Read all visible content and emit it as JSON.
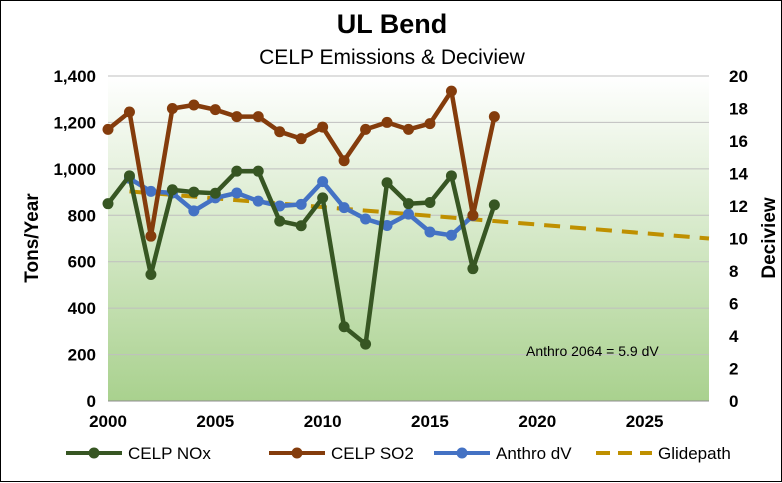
{
  "chart_data": {
    "type": "line",
    "title": "UL Bend",
    "subtitle": "CELP Emissions & Deciview",
    "ylabel": "Tons/Year",
    "y2label": "Deciview",
    "xlim": [
      2000,
      2028
    ],
    "ylim": [
      0,
      1400
    ],
    "y2lim": [
      0,
      20
    ],
    "xticks": [
      2000,
      2005,
      2010,
      2015,
      2020,
      2025
    ],
    "xtick_labels": [
      "2000",
      "2005",
      "2010",
      "2015",
      "2020",
      "2025"
    ],
    "yticks": [
      0,
      200,
      400,
      600,
      800,
      1000,
      1200,
      1400
    ],
    "ytick_labels": [
      "0",
      "200",
      "400",
      "600",
      "800",
      "1,000",
      "1,200",
      "1,400"
    ],
    "y2ticks": [
      0,
      2,
      4,
      6,
      8,
      10,
      12,
      14,
      16,
      18,
      20
    ],
    "y2tick_labels": [
      "0",
      "2",
      "4",
      "6",
      "8",
      "10",
      "12",
      "14",
      "16",
      "18",
      "20"
    ],
    "grid": "horizontal",
    "legend_position": "bottom",
    "background": "gradient-green",
    "series": [
      {
        "name": "CELP NOx",
        "axis": "left",
        "color": "#375623",
        "style": "line-marker",
        "x": [
          2000,
          2001,
          2002,
          2003,
          2004,
          2005,
          2006,
          2007,
          2008,
          2009,
          2010,
          2011,
          2012,
          2013,
          2014,
          2015,
          2016,
          2017,
          2018
        ],
        "values": [
          850,
          970,
          545,
          910,
          900,
          895,
          990,
          990,
          775,
          755,
          875,
          320,
          245,
          940,
          850,
          855,
          970,
          570,
          845
        ]
      },
      {
        "name": "CELP SO2",
        "axis": "left",
        "color": "#843C0C",
        "style": "line-marker",
        "x": [
          2000,
          2001,
          2002,
          2003,
          2004,
          2005,
          2006,
          2007,
          2008,
          2009,
          2010,
          2011,
          2012,
          2013,
          2014,
          2015,
          2016,
          2017,
          2018
        ],
        "values": [
          1170,
          1245,
          710,
          1260,
          1275,
          1255,
          1225,
          1225,
          1160,
          1130,
          1180,
          1035,
          1170,
          1200,
          1170,
          1195,
          1335,
          800,
          1225
        ]
      },
      {
        "name": "Anthro dV",
        "axis": "right",
        "color": "#4472C4",
        "style": "line-marker",
        "x": [
          2001,
          2002,
          2003,
          2004,
          2005,
          2006,
          2007,
          2008,
          2009,
          2010,
          2011,
          2012,
          2013,
          2014,
          2015,
          2016,
          2017
        ],
        "values": [
          13.7,
          12.9,
          12.8,
          11.7,
          12.5,
          12.8,
          12.3,
          12.0,
          12.1,
          13.5,
          11.9,
          11.2,
          10.8,
          11.5,
          10.4,
          10.2,
          11.4
        ]
      },
      {
        "name": "Glidepath",
        "axis": "right",
        "color": "#BF9000",
        "style": "dashed",
        "x": [
          2001,
          2028
        ],
        "values": [
          12.9,
          10.0
        ]
      }
    ],
    "annotation": "Anthro 2064 = 5.9 dV"
  }
}
